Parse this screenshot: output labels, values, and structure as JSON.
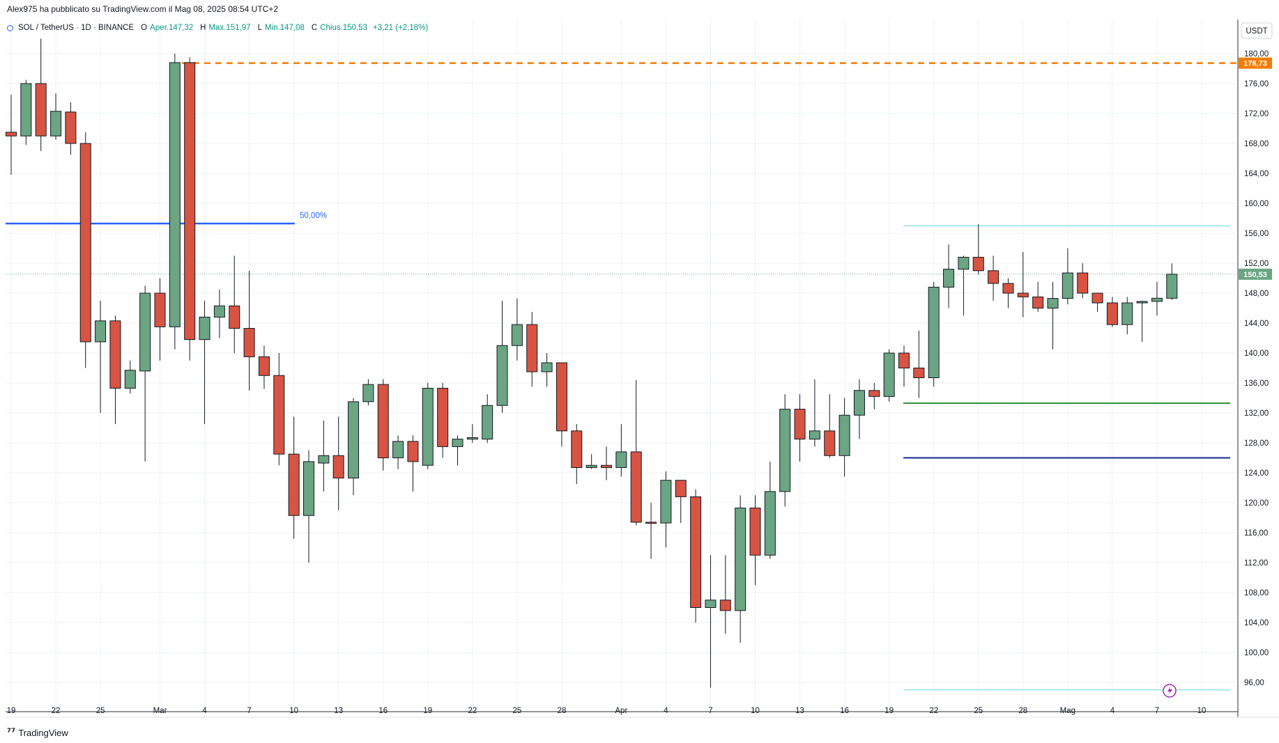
{
  "header": {
    "publish_line": "Alex975 ha pubblicato su TradingView.com il Mag 08, 2025 08:54 UTC+2"
  },
  "legend": {
    "symbol": "SOL / TetherUS · 1D · BINANCE",
    "open_label": "O",
    "open_value": "Aper.147,32",
    "high_label": "H",
    "high_value": "Max.151,97",
    "low_label": "L",
    "low_value": "Min.147,08",
    "close_label": "C",
    "close_value": "Chius.150,53",
    "change": "+3,21 (+2,18%)"
  },
  "price_axis": {
    "currency": "USDT"
  },
  "footer": {
    "brand": "TradingView"
  },
  "colors": {
    "up": "#6ba583",
    "down": "#d75442",
    "grid": "#eef1f5",
    "fib_50": "#2962ff",
    "horizontal_orange": "#f57c00",
    "support_green": "#388e3c",
    "support_navy": "#0d2a8a",
    "range_cyan": "#80deea",
    "last_price_badge": "#6ba583",
    "orange_badge": "#f57c00"
  },
  "chart_data": {
    "type": "candlestick",
    "y_axis_ticks": [
      "96,00",
      "100,00",
      "104,00",
      "108,00",
      "112,00",
      "116,00",
      "120,00",
      "124,00",
      "128,00",
      "132,00",
      "136,00",
      "140,00",
      "144,00",
      "148,00",
      "152,00",
      "156,00",
      "160,00",
      "164,00",
      "168,00",
      "172,00",
      "176,00",
      "180,00"
    ],
    "x_axis_ticks": [
      {
        "label": "19",
        "i": 0
      },
      {
        "label": "22",
        "i": 3
      },
      {
        "label": "25",
        "i": 6
      },
      {
        "label": "Mar",
        "i": 10
      },
      {
        "label": "4",
        "i": 13
      },
      {
        "label": "7",
        "i": 16
      },
      {
        "label": "10",
        "i": 19
      },
      {
        "label": "13",
        "i": 22
      },
      {
        "label": "16",
        "i": 25
      },
      {
        "label": "19",
        "i": 28
      },
      {
        "label": "22",
        "i": 31
      },
      {
        "label": "25",
        "i": 34
      },
      {
        "label": "28",
        "i": 37
      },
      {
        "label": "Apr",
        "i": 41
      },
      {
        "label": "4",
        "i": 44
      },
      {
        "label": "7",
        "i": 47
      },
      {
        "label": "10",
        "i": 50
      },
      {
        "label": "13",
        "i": 53
      },
      {
        "label": "16",
        "i": 56
      },
      {
        "label": "19",
        "i": 59
      },
      {
        "label": "22",
        "i": 62
      },
      {
        "label": "25",
        "i": 65
      },
      {
        "label": "28",
        "i": 68
      },
      {
        "label": "Mag",
        "i": 71
      },
      {
        "label": "4",
        "i": 74
      },
      {
        "label": "7",
        "i": 77
      },
      {
        "label": "10",
        "i": 80
      }
    ],
    "ohlc": [
      [
        169.5,
        174.5,
        163.8,
        169.0
      ],
      [
        169.0,
        176.5,
        167.8,
        176.0
      ],
      [
        176.0,
        182.0,
        167.0,
        169.0
      ],
      [
        169.0,
        174.7,
        168.5,
        172.3
      ],
      [
        172.2,
        173.5,
        166.5,
        168.0
      ],
      [
        168.0,
        169.5,
        138.0,
        141.5
      ],
      [
        141.5,
        147.0,
        132.0,
        144.3
      ],
      [
        144.3,
        145.0,
        130.5,
        135.3
      ],
      [
        135.3,
        139.0,
        134.6,
        137.7
      ],
      [
        137.6,
        149.0,
        125.5,
        148.0
      ],
      [
        148.0,
        150.0,
        139.0,
        143.5
      ],
      [
        143.5,
        180.0,
        140.5,
        178.8
      ],
      [
        178.8,
        179.5,
        139.0,
        141.8
      ],
      [
        141.8,
        147.0,
        130.5,
        144.8
      ],
      [
        144.8,
        148.5,
        142.0,
        146.3
      ],
      [
        146.3,
        153.0,
        140.0,
        143.3
      ],
      [
        143.3,
        151.0,
        135.0,
        139.5
      ],
      [
        139.5,
        141.0,
        135.2,
        137.0
      ],
      [
        137.0,
        140.0,
        125.0,
        126.5
      ],
      [
        126.5,
        131.5,
        115.2,
        118.3
      ],
      [
        118.3,
        127.0,
        112.0,
        125.5
      ],
      [
        125.3,
        131.0,
        121.5,
        126.3
      ],
      [
        126.3,
        131.5,
        119.0,
        123.3
      ],
      [
        123.3,
        134.0,
        121.0,
        133.5
      ],
      [
        133.5,
        136.5,
        133.0,
        135.8
      ],
      [
        135.8,
        136.5,
        124.3,
        126.0
      ],
      [
        126.0,
        129.0,
        124.5,
        128.2
      ],
      [
        128.2,
        129.0,
        121.5,
        125.5
      ],
      [
        125.0,
        136.0,
        124.5,
        135.3
      ],
      [
        135.3,
        136.0,
        126.0,
        127.5
      ],
      [
        127.5,
        129.0,
        125.0,
        128.5
      ],
      [
        128.5,
        130.5,
        128.0,
        128.7
      ],
      [
        128.5,
        134.5,
        128.0,
        133.0
      ],
      [
        133.0,
        147.0,
        132.0,
        141.0
      ],
      [
        141.0,
        147.3,
        139.0,
        143.8
      ],
      [
        143.8,
        145.5,
        135.5,
        137.5
      ],
      [
        137.5,
        140.0,
        135.5,
        138.7
      ],
      [
        138.7,
        138.7,
        127.5,
        129.6
      ],
      [
        129.6,
        130.5,
        122.5,
        124.7
      ],
      [
        124.7,
        126.5,
        124.5,
        125.0
      ],
      [
        125.0,
        127.5,
        123.0,
        124.7
      ],
      [
        124.7,
        130.5,
        123.5,
        126.8
      ],
      [
        126.8,
        136.4,
        117.0,
        117.4
      ],
      [
        117.4,
        120.0,
        112.5,
        117.3
      ],
      [
        117.3,
        124.2,
        114.0,
        123.0
      ],
      [
        123.0,
        123.0,
        117.3,
        120.8
      ],
      [
        120.8,
        121.8,
        104.0,
        106.0
      ],
      [
        106.0,
        113.0,
        95.3,
        107.0
      ],
      [
        107.0,
        113.0,
        102.5,
        105.6
      ],
      [
        105.6,
        121.0,
        101.3,
        119.3
      ],
      [
        119.3,
        121.0,
        109.0,
        113.0
      ],
      [
        113.0,
        125.5,
        112.5,
        121.5
      ],
      [
        121.5,
        134.5,
        119.5,
        132.5
      ],
      [
        132.5,
        134.5,
        125.5,
        128.5
      ],
      [
        128.5,
        136.5,
        127.5,
        129.6
      ],
      [
        129.6,
        134.5,
        126.0,
        126.3
      ],
      [
        126.3,
        134.0,
        123.5,
        131.7
      ],
      [
        131.7,
        136.5,
        128.5,
        135.0
      ],
      [
        135.0,
        136.0,
        132.5,
        134.2
      ],
      [
        134.2,
        140.5,
        133.5,
        140.0
      ],
      [
        140.0,
        141.0,
        135.5,
        138.0
      ],
      [
        138.0,
        143.0,
        134.0,
        136.7
      ],
      [
        136.7,
        149.5,
        135.5,
        148.8
      ],
      [
        148.8,
        154.5,
        146.0,
        151.2
      ],
      [
        151.2,
        153.0,
        145.0,
        152.8
      ],
      [
        152.8,
        157.2,
        150.5,
        151.0
      ],
      [
        151.0,
        153.0,
        147.0,
        149.3
      ],
      [
        149.3,
        150.0,
        146.0,
        148.0
      ],
      [
        148.0,
        153.5,
        144.8,
        147.5
      ],
      [
        147.5,
        149.5,
        145.5,
        146.0
      ],
      [
        146.0,
        149.5,
        140.5,
        147.3
      ],
      [
        147.3,
        154.0,
        146.5,
        150.7
      ],
      [
        150.7,
        152.0,
        147.3,
        148.0
      ],
      [
        148.0,
        148.0,
        145.5,
        146.7
      ],
      [
        146.7,
        147.5,
        143.5,
        143.8
      ],
      [
        143.8,
        147.5,
        142.5,
        146.7
      ],
      [
        146.7,
        147.0,
        141.5,
        146.9
      ],
      [
        146.9,
        149.5,
        145.0,
        147.32
      ],
      [
        147.32,
        151.97,
        147.08,
        150.53
      ]
    ],
    "annotations": {
      "fib_50": {
        "label": "50,00%",
        "price": 157.3
      },
      "orange_dashed": {
        "price": 178.73,
        "badge": "178,73"
      },
      "last_price": {
        "price": 150.53,
        "badge": "150,53"
      },
      "range_top": {
        "price": 157.0
      },
      "support_green": {
        "price": 133.3
      },
      "support_navy": {
        "price": 126.0
      },
      "range_bottom": {
        "price": 95.0
      }
    },
    "ylim": [
      94,
      181.5
    ]
  }
}
